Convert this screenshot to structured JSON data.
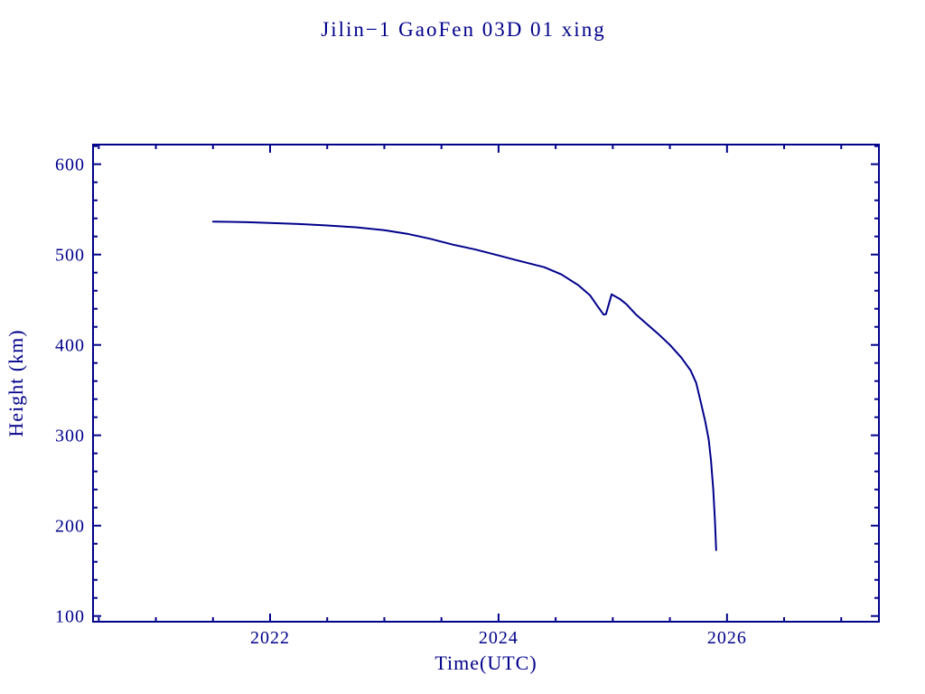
{
  "window": {
    "background": "#ffffff"
  },
  "colors": {
    "ink": "#00008B"
  },
  "chart_data": {
    "type": "line",
    "title": "Jilin−1 GaoFen 03D 01 xing",
    "xlabel": "Time(UTC)",
    "ylabel": "Height (km)",
    "xlim": [
      2020.45,
      2027.33
    ],
    "ylim": [
      93.7,
      621.7
    ],
    "x_major_ticks": [
      2022,
      2024,
      2026
    ],
    "x_tick_labels": [
      "2022",
      "2024",
      "2026"
    ],
    "x_minor_step": 0.5,
    "y_major_ticks": [
      100,
      200,
      300,
      400,
      500,
      600
    ],
    "y_tick_labels": [
      "100",
      "200",
      "300",
      "400",
      "500",
      "600"
    ],
    "y_minor_step": 20,
    "grid": false,
    "legend_position": "none",
    "line_color": "#00008B",
    "series": [
      {
        "name": "orbit-height-km",
        "points": [
          [
            2021.5,
            536.5
          ],
          [
            2021.65,
            536.2
          ],
          [
            2021.8,
            535.8
          ],
          [
            2022.0,
            535.0
          ],
          [
            2022.25,
            533.8
          ],
          [
            2022.5,
            532.2
          ],
          [
            2022.75,
            530.2
          ],
          [
            2023.0,
            527.0
          ],
          [
            2023.2,
            523.0
          ],
          [
            2023.4,
            517.5
          ],
          [
            2023.6,
            511.0
          ],
          [
            2023.8,
            505.5
          ],
          [
            2024.0,
            499.0
          ],
          [
            2024.15,
            494.0
          ],
          [
            2024.4,
            486.0
          ],
          [
            2024.55,
            478.0
          ],
          [
            2024.7,
            466.0
          ],
          [
            2024.8,
            455.0
          ],
          [
            2024.86,
            444.0
          ],
          [
            2024.92,
            433.5
          ],
          [
            2024.94,
            434.0
          ],
          [
            2024.99,
            456.0
          ],
          [
            2025.06,
            451.0
          ],
          [
            2025.12,
            445.0
          ],
          [
            2025.2,
            434.0
          ],
          [
            2025.3,
            423.0
          ],
          [
            2025.4,
            412.0
          ],
          [
            2025.5,
            400.0
          ],
          [
            2025.6,
            386.0
          ],
          [
            2025.68,
            372.0
          ],
          [
            2025.73,
            358.0
          ],
          [
            2025.77,
            337.0
          ],
          [
            2025.81,
            315.0
          ],
          [
            2025.84,
            295.0
          ],
          [
            2025.86,
            272.0
          ],
          [
            2025.88,
            240.0
          ],
          [
            2025.895,
            205.0
          ],
          [
            2025.905,
            173.0
          ]
        ]
      }
    ]
  }
}
